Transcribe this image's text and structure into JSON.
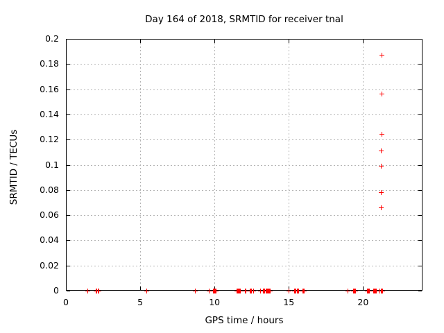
{
  "chart_data": {
    "type": "scatter",
    "title": "Day 164 of 2018, SRMTID for receiver tnal",
    "xlabel": "GPS time / hours",
    "ylabel": "SRMTID / TECUs",
    "xlim": [
      0,
      24
    ],
    "ylim": [
      0,
      0.2
    ],
    "x_ticks": [
      0,
      5,
      10,
      15,
      20
    ],
    "x_tick_labels": [
      "0",
      "5",
      "10",
      "15",
      "20"
    ],
    "y_ticks": [
      0,
      0.02,
      0.04,
      0.06,
      0.08,
      0.1,
      0.12,
      0.14,
      0.16,
      0.18,
      0.2
    ],
    "y_tick_labels": [
      "0",
      "0.02",
      "0.04",
      "0.06",
      "0.08",
      "0.1",
      "0.12",
      "0.14",
      "0.16",
      "0.18",
      "0.2"
    ],
    "grid": true,
    "legend": "none",
    "marker": "plus",
    "marker_color": "#ff0000",
    "grid_color": "#b4b4b4",
    "border_color": "#000000",
    "background_color": "#ffffff",
    "series": [
      {
        "name": "SRMTID",
        "points": [
          [
            1.45,
            0
          ],
          [
            2.05,
            0
          ],
          [
            2.1,
            0
          ],
          [
            2.15,
            0
          ],
          [
            2.2,
            0
          ],
          [
            5.45,
            0
          ],
          [
            8.7,
            0
          ],
          [
            9.65,
            0
          ],
          [
            9.9,
            0
          ],
          [
            9.95,
            0
          ],
          [
            10.0,
            0
          ],
          [
            10.05,
            0
          ],
          [
            10.1,
            0
          ],
          [
            11.5,
            0
          ],
          [
            11.55,
            0
          ],
          [
            11.6,
            0
          ],
          [
            11.65,
            0
          ],
          [
            11.7,
            0
          ],
          [
            11.75,
            0
          ],
          [
            12.05,
            0
          ],
          [
            12.1,
            0
          ],
          [
            12.4,
            0
          ],
          [
            12.45,
            0
          ],
          [
            12.5,
            0
          ],
          [
            12.65,
            0
          ],
          [
            13.1,
            0
          ],
          [
            13.3,
            0
          ],
          [
            13.35,
            0
          ],
          [
            13.4,
            0
          ],
          [
            13.45,
            0
          ],
          [
            13.5,
            0
          ],
          [
            13.55,
            0
          ],
          [
            13.6,
            0
          ],
          [
            13.65,
            0
          ],
          [
            13.7,
            0
          ],
          [
            13.75,
            0
          ],
          [
            15.0,
            0
          ],
          [
            15.4,
            0
          ],
          [
            15.45,
            0
          ],
          [
            15.5,
            0
          ],
          [
            15.55,
            0
          ],
          [
            15.6,
            0
          ],
          [
            15.65,
            0
          ],
          [
            15.95,
            0
          ],
          [
            16.0,
            0
          ],
          [
            16.05,
            0
          ],
          [
            19.0,
            0
          ],
          [
            19.35,
            0
          ],
          [
            19.4,
            0
          ],
          [
            19.45,
            0
          ],
          [
            19.5,
            0
          ],
          [
            20.3,
            0
          ],
          [
            20.35,
            0
          ],
          [
            20.4,
            0
          ],
          [
            20.45,
            0
          ],
          [
            20.7,
            0
          ],
          [
            20.75,
            0
          ],
          [
            20.8,
            0
          ],
          [
            20.85,
            0
          ],
          [
            20.9,
            0
          ],
          [
            21.15,
            0
          ],
          [
            21.2,
            0
          ],
          [
            21.25,
            0
          ],
          [
            21.3,
            0
          ],
          [
            21.2,
            0.066
          ],
          [
            21.2,
            0.078
          ],
          [
            21.2,
            0.099
          ],
          [
            21.2,
            0.111
          ],
          [
            21.25,
            0.124
          ],
          [
            21.25,
            0.156
          ],
          [
            21.25,
            0.187
          ]
        ]
      }
    ]
  }
}
